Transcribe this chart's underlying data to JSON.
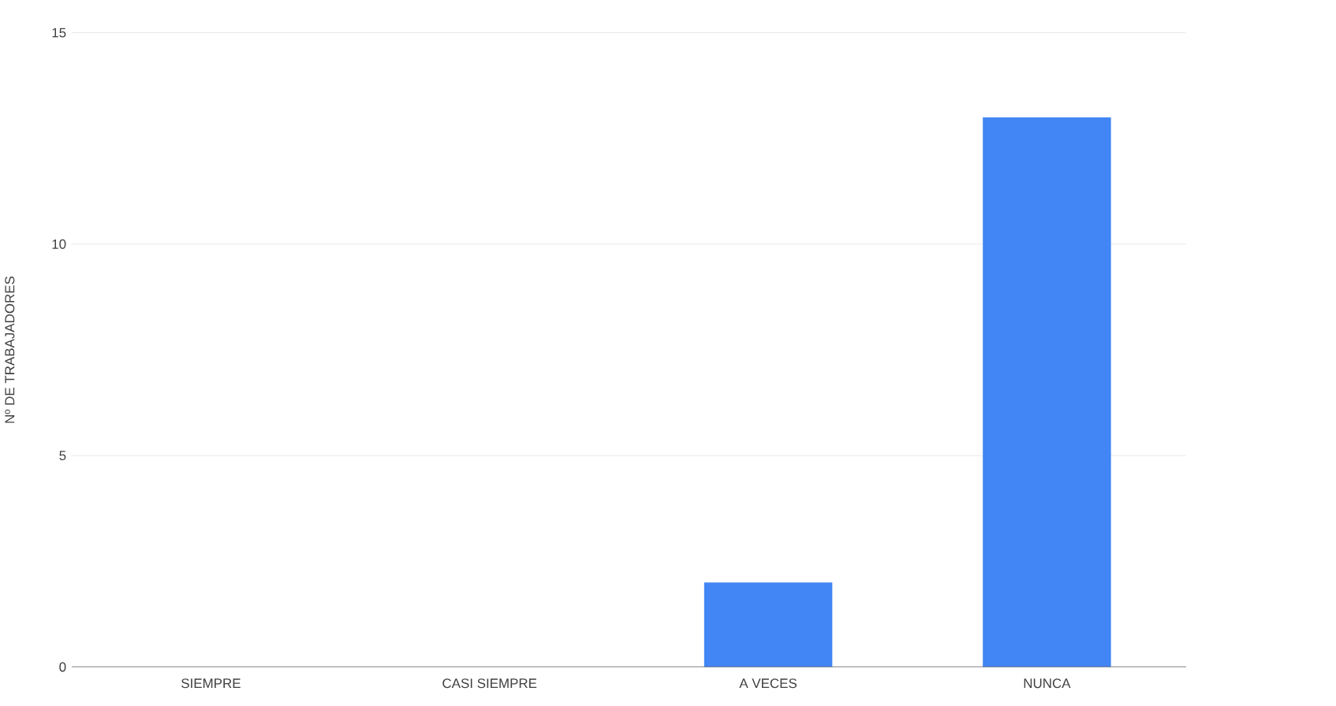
{
  "chart_data": {
    "type": "bar",
    "ylabel": "Nº DE TRABAJADORES",
    "categories": [
      "SIEMPRE",
      "CASI SIEMPRE",
      "A VECES",
      "NUNCA"
    ],
    "values": [
      0,
      0,
      2,
      13
    ],
    "color": "#4285f4",
    "ylim": [
      0,
      15
    ],
    "yticks": [
      0,
      5,
      10,
      15
    ],
    "grid": "y"
  }
}
